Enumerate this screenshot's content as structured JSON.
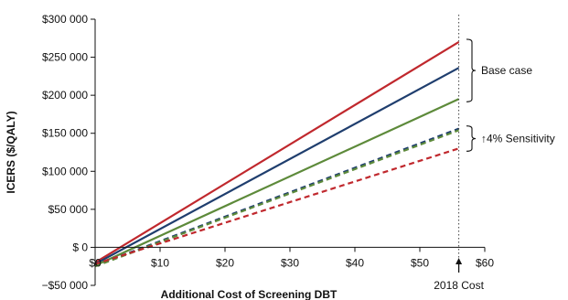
{
  "chart_data": {
    "type": "line",
    "xlabel": "Additional Cost of Screening DBT",
    "ylabel": "ICERS ($/QALY)",
    "xlim": [
      0,
      60
    ],
    "ylim": [
      -50000,
      300000
    ],
    "x_ticks": [
      0,
      10,
      20,
      30,
      40,
      50,
      60
    ],
    "x_tick_labels": [
      "$0",
      "$10",
      "$20",
      "$30",
      "$40",
      "$50",
      "$60"
    ],
    "y_ticks": [
      -50000,
      0,
      50000,
      100000,
      150000,
      200000,
      250000,
      300000
    ],
    "y_tick_labels": [
      "−$50 000",
      "$ 0",
      "$50 000",
      "$100 000",
      "$150 000",
      "$200 000",
      "$250 000",
      "$300 000"
    ],
    "grid": false,
    "series": [
      {
        "color": "#c0282d",
        "dash": "solid",
        "x": [
          0,
          56
        ],
        "y": [
          -20000,
          270000
        ]
      },
      {
        "color": "#1f3e6e",
        "dash": "solid",
        "x": [
          0,
          56
        ],
        "y": [
          -22000,
          236000
        ]
      },
      {
        "color": "#5d8a3a",
        "dash": "solid",
        "x": [
          0,
          56
        ],
        "y": [
          -24000,
          195000
        ]
      },
      {
        "color": "#1f3e6e",
        "dash": "dashed",
        "x": [
          0,
          56
        ],
        "y": [
          -24000,
          156000
        ]
      },
      {
        "color": "#5d8a3a",
        "dash": "dashed",
        "x": [
          0,
          56
        ],
        "y": [
          -25000,
          154000
        ]
      },
      {
        "color": "#c0282d",
        "dash": "dashed",
        "x": [
          0,
          56
        ],
        "y": [
          -22000,
          130000
        ]
      }
    ],
    "reference_line": {
      "x": 56,
      "label": "2018 Cost"
    },
    "annotations": [
      {
        "label": "Base case",
        "y_range": [
          195000,
          270000
        ]
      },
      {
        "label": "↑4% Sensitivity",
        "y_range": [
          130000,
          156000
        ]
      }
    ]
  }
}
